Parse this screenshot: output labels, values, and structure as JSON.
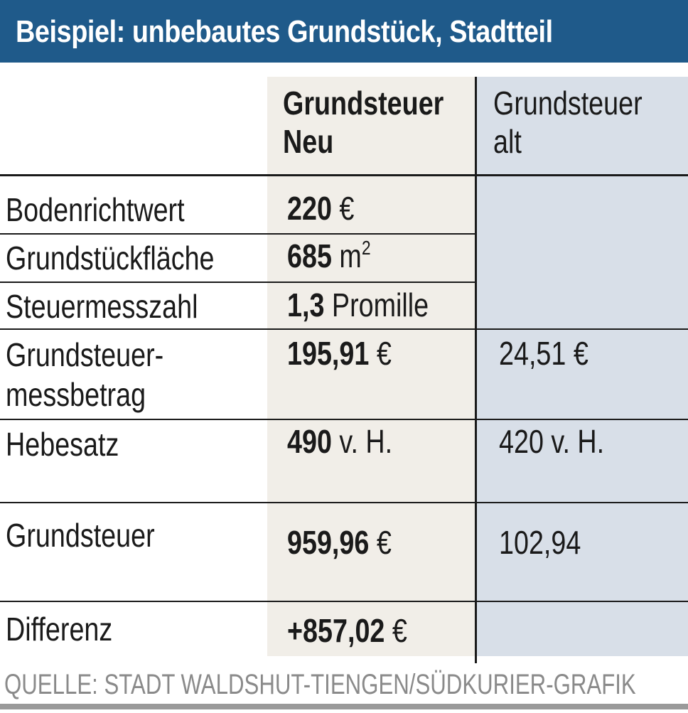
{
  "title": "Beispiel: unbebautes Grundstück, Stadtteil",
  "columns": {
    "neu_line1": "Grundsteuer",
    "neu_line2": "Neu",
    "alt_line1": "Grundsteuer",
    "alt_line2": "alt"
  },
  "rows": [
    {
      "label": "Bodenrichtwert",
      "neu_num": "220",
      "neu_unit": " €"
    },
    {
      "label": "Grundstückfläche",
      "neu_num": "685",
      "neu_unit": " m",
      "neu_sup": "2"
    },
    {
      "label": "Steuermesszahl",
      "neu_num": "1,3",
      "neu_unit": " Promille"
    },
    {
      "label_line1": "Grundsteuer-",
      "label_line2": "messbetrag",
      "neu_num": "195,91",
      "neu_unit": " €",
      "alt": "24,51 €"
    },
    {
      "label": "Hebesatz",
      "neu_num": "490",
      "neu_unit": " v. H.",
      "alt": "420 v. H."
    },
    {
      "label": "Grundsteuer",
      "neu_num": "959,96",
      "neu_unit": " €",
      "alt": "102,94"
    },
    {
      "label": "Differenz",
      "neu_num": "+857,02",
      "neu_unit": " €"
    }
  ],
  "source": "QUELLE: STADT WALDSHUT-TIENGEN/SÜDKURIER-GRAFIK",
  "colors": {
    "title_bg": "#1f5a8a",
    "neu_column_bg": "#f1eee8",
    "alt_column_bg": "#d8dfe8"
  }
}
